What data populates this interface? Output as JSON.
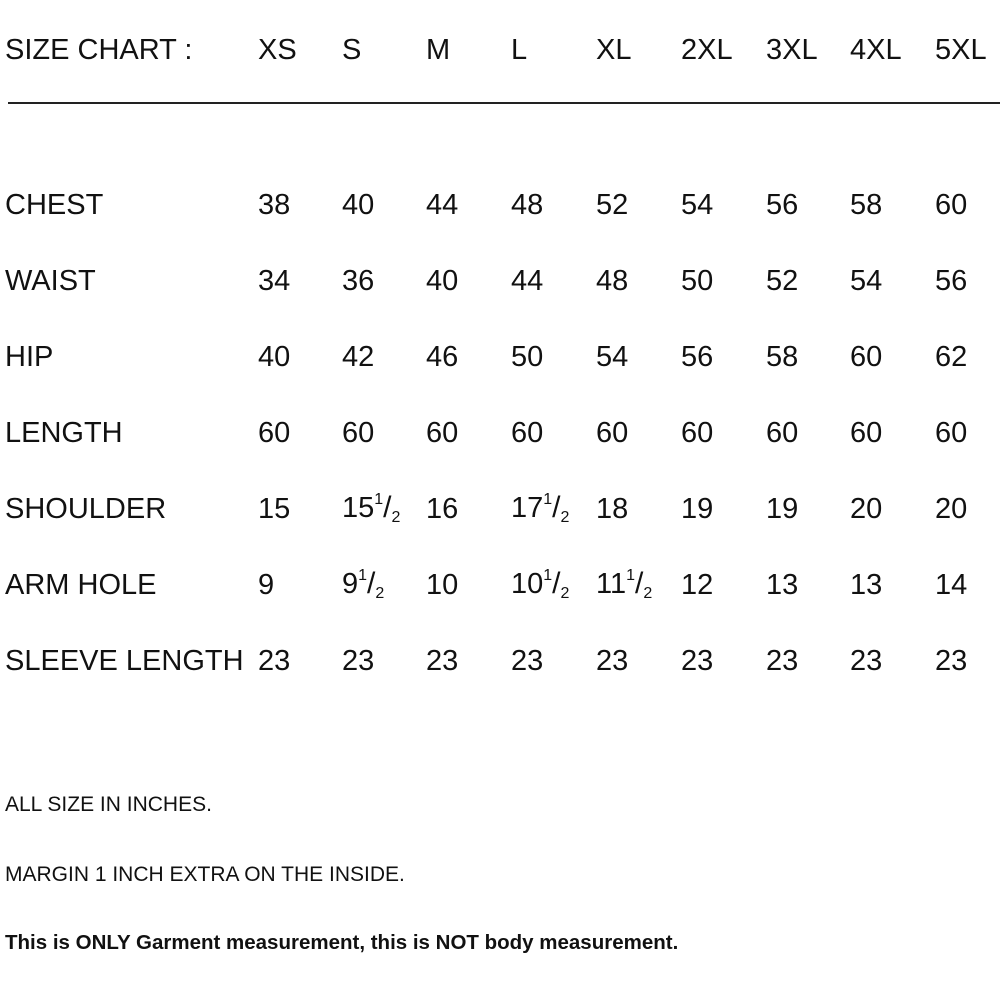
{
  "header": {
    "title": "SIZE CHART :",
    "sizes": [
      "XS",
      "S",
      "M",
      "L",
      "XL",
      "2XL",
      "3XL",
      "4XL",
      "5XL"
    ]
  },
  "rows": [
    {
      "label": "CHEST",
      "values": [
        {
          "w": "38"
        },
        {
          "w": "40"
        },
        {
          "w": "44"
        },
        {
          "w": "48"
        },
        {
          "w": "52"
        },
        {
          "w": "54"
        },
        {
          "w": "56"
        },
        {
          "w": "58"
        },
        {
          "w": "60"
        }
      ]
    },
    {
      "label": "WAIST",
      "values": [
        {
          "w": "34"
        },
        {
          "w": "36"
        },
        {
          "w": "40"
        },
        {
          "w": "44"
        },
        {
          "w": "48"
        },
        {
          "w": "50"
        },
        {
          "w": "52"
        },
        {
          "w": "54"
        },
        {
          "w": "56"
        }
      ]
    },
    {
      "label": "HIP",
      "values": [
        {
          "w": "40"
        },
        {
          "w": "42"
        },
        {
          "w": "46"
        },
        {
          "w": "50"
        },
        {
          "w": "54"
        },
        {
          "w": "56"
        },
        {
          "w": "58"
        },
        {
          "w": "60"
        },
        {
          "w": "62"
        }
      ]
    },
    {
      "label": "LENGTH",
      "values": [
        {
          "w": "60"
        },
        {
          "w": "60"
        },
        {
          "w": "60"
        },
        {
          "w": "60"
        },
        {
          "w": "60"
        },
        {
          "w": "60"
        },
        {
          "w": "60"
        },
        {
          "w": "60"
        },
        {
          "w": "60"
        }
      ]
    },
    {
      "label": "SHOULDER",
      "values": [
        {
          "w": "15"
        },
        {
          "w": "15",
          "n": "1",
          "d": "2"
        },
        {
          "w": "16"
        },
        {
          "w": "17",
          "n": "1",
          "d": "2"
        },
        {
          "w": "18"
        },
        {
          "w": "19"
        },
        {
          "w": "19"
        },
        {
          "w": "20"
        },
        {
          "w": "20"
        }
      ]
    },
    {
      "label": "ARM HOLE",
      "values": [
        {
          "w": "9"
        },
        {
          "w": "9",
          "n": "1",
          "d": "2"
        },
        {
          "w": "10"
        },
        {
          "w": "10",
          "n": "1",
          "d": "2"
        },
        {
          "w": "11",
          "n": "1",
          "d": "2"
        },
        {
          "w": "12"
        },
        {
          "w": "13"
        },
        {
          "w": "13"
        },
        {
          "w": "14"
        }
      ]
    },
    {
      "label": "SLEEVE LENGTH",
      "values": [
        {
          "w": "23"
        },
        {
          "w": "23"
        },
        {
          "w": "23"
        },
        {
          "w": "23"
        },
        {
          "w": "23"
        },
        {
          "w": "23"
        },
        {
          "w": "23"
        },
        {
          "w": "23"
        },
        {
          "w": "23"
        }
      ]
    }
  ],
  "notes": {
    "units": "ALL SIZE IN INCHES.",
    "margin": "MARGIN 1 INCH EXTRA ON THE INSIDE.",
    "disclaimer": "This is ONLY Garment measurement, this is NOT body measurement."
  }
}
